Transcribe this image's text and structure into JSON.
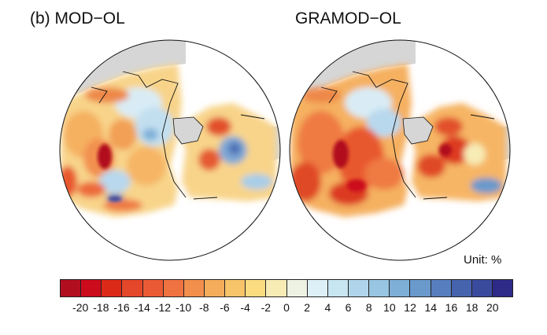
{
  "panel_label": "(b)",
  "maps": [
    {
      "title": "MOD−OL"
    },
    {
      "title": "GRAMOD−OL"
    }
  ],
  "unit_label": "Unit: %",
  "colorbar": {
    "ticks": [
      "-20",
      "-18",
      "-16",
      "-14",
      "-12",
      "-10",
      "-8",
      "-6",
      "-4",
      "-2",
      "0",
      "2",
      "4",
      "6",
      "8",
      "10",
      "12",
      "14",
      "16",
      "18",
      "20"
    ],
    "colors": [
      "#b10f1f",
      "#cc0b1c",
      "#dc2a18",
      "#e4472a",
      "#ea5b35",
      "#ef7241",
      "#f28f4c",
      "#f5ad5b",
      "#f8c46a",
      "#fbdc80",
      "#f8ecb5",
      "#eef2e3",
      "#ddeff7",
      "#c8e5f2",
      "#b0d5eb",
      "#98c5e1",
      "#7eafd7",
      "#6a99cc",
      "#577ebf",
      "#4663ad",
      "#3a4b9d",
      "#2e2a88"
    ]
  },
  "land_missing_color": "#d6d6d6"
}
